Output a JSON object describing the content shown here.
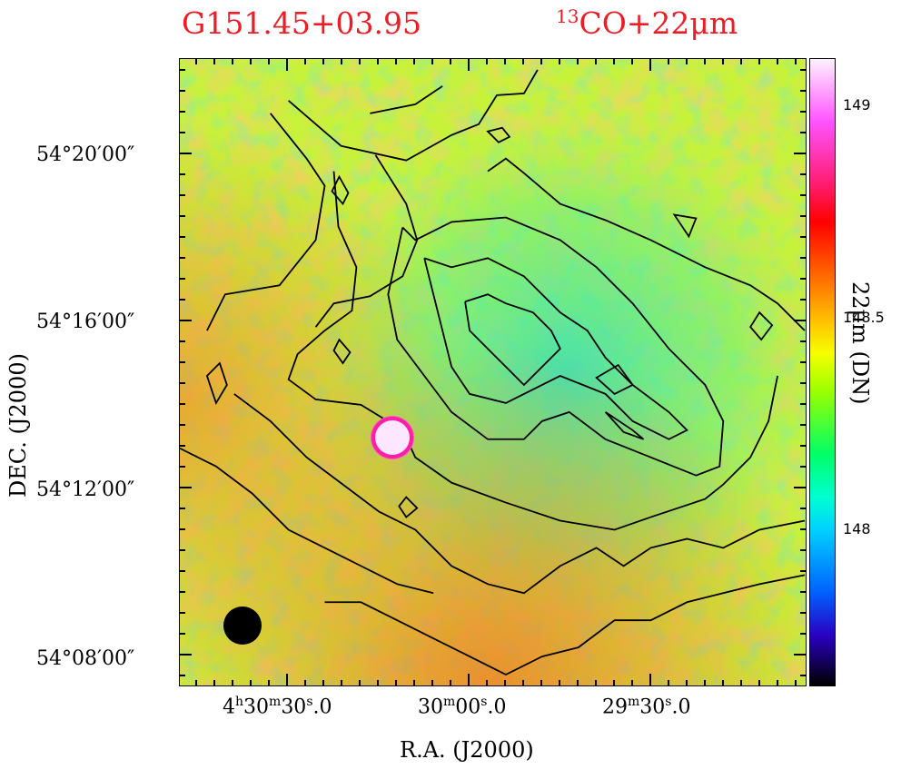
{
  "title": {
    "source_name": "G151.45+03.95",
    "tracer_prefix": "13",
    "tracer_text": "CO+22μm"
  },
  "axes": {
    "xlabel": "R.A.  (J2000)",
    "ylabel": "DEC.  (J2000)",
    "yticks": [
      "54°20′00″",
      "54°16′00″",
      "54°12′00″",
      "54°08′00″"
    ],
    "xticks": [
      {
        "h": "4",
        "hs": "h",
        "m": "30",
        "ms": "m",
        "s": "30",
        "ss": "s",
        "frac": ".0"
      },
      {
        "h": "",
        "hs": "",
        "m": "30",
        "ms": "m",
        "s": "00",
        "ss": "s",
        "frac": ".0"
      },
      {
        "h": "",
        "hs": "",
        "m": "29",
        "ms": "m",
        "s": "30",
        "ss": "s",
        "frac": ".0"
      }
    ]
  },
  "colorbar": {
    "label": "22μm  (DN)",
    "ticks": [
      "149",
      "148.5",
      "148"
    ],
    "colors": [
      "#000000",
      "#2a00c2",
      "#0063ff",
      "#00d2ff",
      "#00ffd0",
      "#00ff66",
      "#9cff00",
      "#f6ff00",
      "#ffc300",
      "#ff7a00",
      "#ff0000",
      "#ff53ff",
      "#fdf2ff"
    ]
  },
  "map_colors": {
    "background": "#c8f23a",
    "warm": "#f59a2c",
    "cool": "#3ce6b8",
    "contour": "#000000",
    "source_marker": "#ff1fa6"
  }
}
